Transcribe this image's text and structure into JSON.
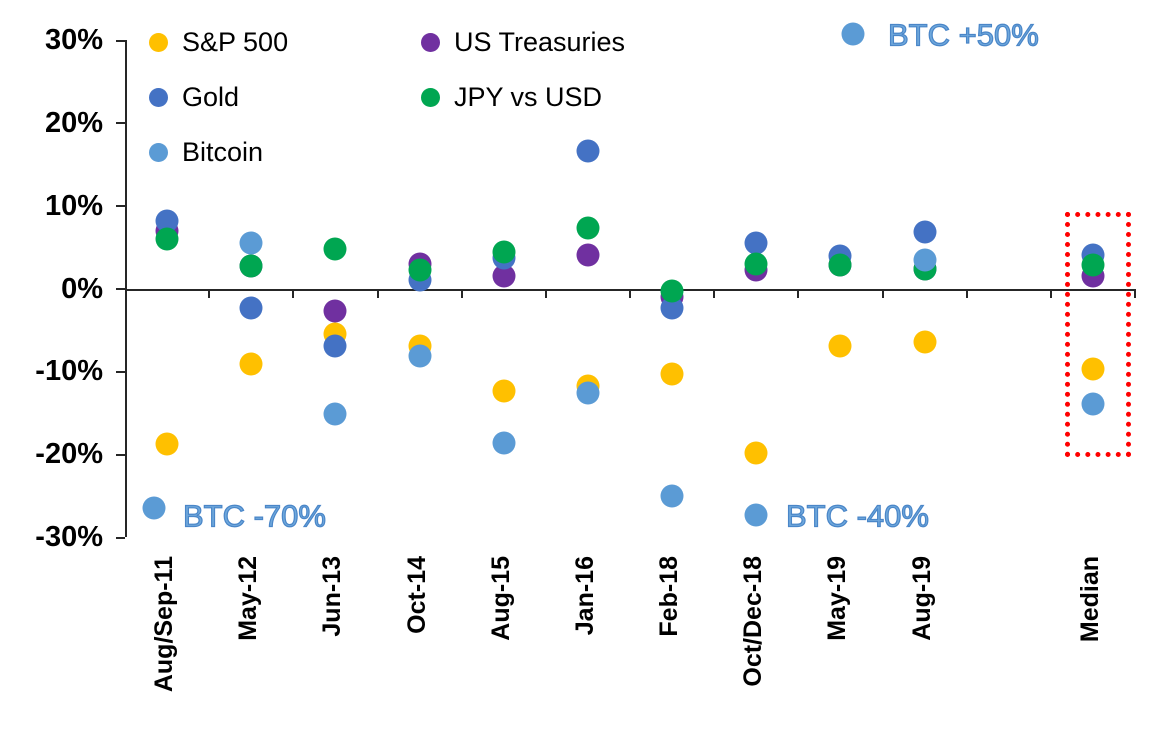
{
  "chart_data": {
    "type": "scatter",
    "title": "",
    "xlabel": "",
    "ylabel": "",
    "ylim": [
      -30,
      30
    ],
    "grid": false,
    "ytick_labels": [
      "30%",
      "20%",
      "10%",
      "0%",
      "-10%",
      "-20%",
      "-30%"
    ],
    "yticks": [
      30,
      20,
      10,
      0,
      -10,
      -20,
      -30
    ],
    "categories": [
      "Aug/Sep-11",
      "May-12",
      "Jun-13",
      "Oct-14",
      "Aug-15",
      "Jan-16",
      "Feb-18",
      "Oct/Dec-18",
      "May-19",
      "Aug-19",
      "",
      "Median"
    ],
    "series": [
      {
        "name": "S&P 500",
        "color": "#FFC000",
        "values": [
          -18.8,
          -9.1,
          -5.5,
          -6.9,
          -12.4,
          -11.8,
          -10.3,
          -19.9,
          -7.0,
          -6.4,
          null,
          -9.7
        ]
      },
      {
        "name": "US Treasuries",
        "color": "#7030A0",
        "values": [
          7.0,
          2.7,
          -2.7,
          3.0,
          1.5,
          4.1,
          -1.0,
          2.2,
          2.8,
          2.3,
          null,
          1.5
        ]
      },
      {
        "name": "Gold",
        "color": "#4472C4",
        "values": [
          8.1,
          -2.4,
          -7.0,
          1.0,
          3.7,
          16.6,
          -2.4,
          5.5,
          3.9,
          6.8,
          null,
          4.0
        ]
      },
      {
        "name": "JPY vs USD",
        "color": "#00A651",
        "values": [
          6.0,
          2.7,
          4.8,
          2.2,
          4.4,
          7.3,
          -0.3,
          3.0,
          2.8,
          2.3,
          null,
          2.8
        ]
      },
      {
        "name": "Bitcoin",
        "color": "#5B9BD5",
        "values": [
          -26.5,
          5.5,
          -15.2,
          -8.2,
          -18.7,
          -12.6,
          -25.0,
          -27.4,
          30.7,
          3.5,
          null,
          -14.0
        ]
      }
    ],
    "legend": {
      "position": "top-left",
      "columns": [
        [
          "S&P 500",
          "Gold",
          "Bitcoin"
        ],
        [
          "US Treasuries",
          "JPY vs USD"
        ]
      ]
    },
    "annotations": [
      {
        "text": "BTC +50%",
        "color": "#6FA8DC",
        "refers_to": {
          "series": "Bitcoin",
          "category": "May-19"
        }
      },
      {
        "text": "BTC -70%",
        "color": "#6FA8DC",
        "refers_to": {
          "series": "Bitcoin",
          "category": "Aug/Sep-11"
        }
      },
      {
        "text": "BTC -40%",
        "color": "#6FA8DC",
        "refers_to": {
          "series": "Bitcoin",
          "category": "Oct/Dec-18"
        }
      }
    ],
    "highlight": {
      "category": "Median",
      "style": "red dotted rectangle",
      "color": "#FF0000"
    }
  }
}
